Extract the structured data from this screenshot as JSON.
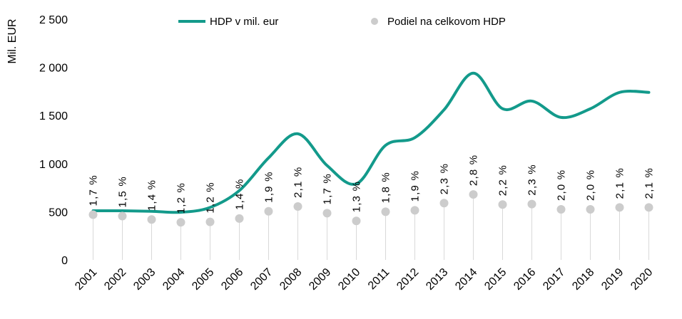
{
  "chart_data": {
    "type": "line",
    "ylabel": "Mil. EUR",
    "ylim": [
      0,
      2500
    ],
    "yticks": [
      0,
      500,
      1000,
      1500,
      2000,
      2500
    ],
    "ytick_labels": [
      "0",
      "500",
      "1 000",
      "1 500",
      "2 000",
      "2 500"
    ],
    "categories": [
      "2001",
      "2002",
      "2003",
      "2004",
      "2005",
      "2006",
      "2007",
      "2008",
      "2009",
      "2010",
      "2011",
      "2012",
      "2013",
      "2014",
      "2015",
      "2016",
      "2017",
      "2018",
      "2019",
      "2020"
    ],
    "legend_position": "top",
    "series": [
      {
        "name": "HDP v mil. eur",
        "kind": "line",
        "color": "#139a8b",
        "values": [
          510,
          510,
          505,
          495,
          545,
          720,
          1060,
          1310,
          980,
          790,
          1190,
          1270,
          1560,
          1940,
          1570,
          1650,
          1480,
          1570,
          1740,
          1740
        ]
      },
      {
        "name": "Podiel na celkovom HDP",
        "kind": "lollipop",
        "color": "#cccccc",
        "values": [
          470,
          455,
          420,
          390,
          395,
          430,
          505,
          555,
          485,
          405,
          500,
          515,
          590,
          680,
          575,
          580,
          525,
          525,
          545,
          545
        ],
        "labels": [
          "1,7 %",
          "1,5 %",
          "1,4 %",
          "1,2 %",
          "1,2 %",
          "1,4 %",
          "1,9 %",
          "2,1 %",
          "1,7 %",
          "1,3 %",
          "1,8 %",
          "1,9 %",
          "2,3 %",
          "2,8 %",
          "2,2 %",
          "2,3 %",
          "2,0 %",
          "2,0 %",
          "2,1 %",
          "2,1 %"
        ]
      }
    ]
  }
}
